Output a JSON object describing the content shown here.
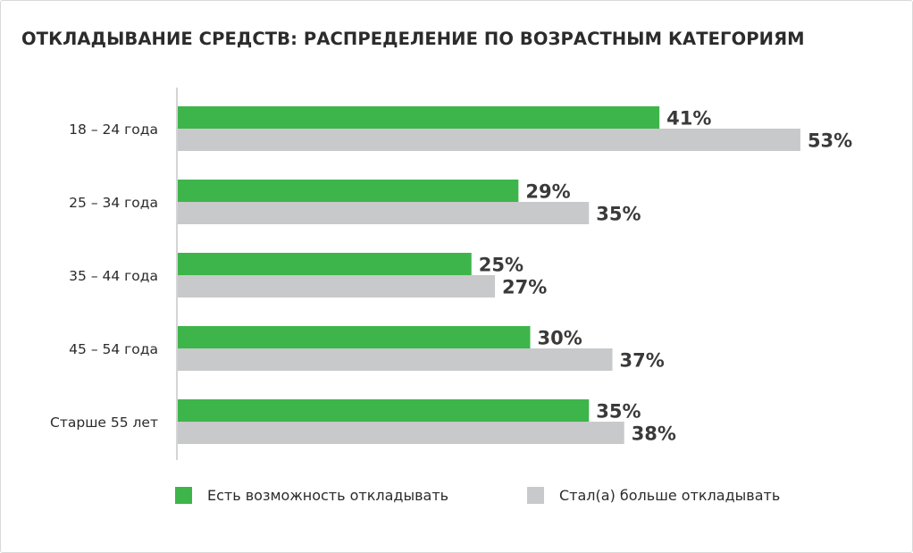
{
  "chart_data": {
    "type": "bar",
    "orientation": "horizontal",
    "title": "ОТКЛАДЫВАНИЕ СРЕДСТВ: РАСПРЕДЕЛЕНИЕ ПО ВОЗРАСТНЫМ КАТЕГОРИЯМ",
    "categories": [
      "18 – 24 года",
      "25 – 34 года",
      "35 – 44 года",
      "45 – 54 года",
      "Старше 55 лет"
    ],
    "series": [
      {
        "name": "Есть возможность откладывать",
        "color": "#3db54a",
        "values": [
          41,
          29,
          25,
          30,
          35
        ],
        "labels": [
          "41%",
          "29%",
          "25%",
          "30%",
          "35%"
        ]
      },
      {
        "name": "Стал(а) больше откладывать",
        "color": "#c8c9cb",
        "values": [
          53,
          35,
          27,
          37,
          38
        ],
        "labels": [
          "53%",
          "35%",
          "27%",
          "37%",
          "38%"
        ]
      }
    ],
    "value_unit": "%",
    "xlim": [
      0,
      55
    ],
    "grid": false,
    "legend_position": "bottom"
  },
  "legend": {
    "items": [
      {
        "label": "Есть возможность откладывать",
        "color": "#3db54a"
      },
      {
        "label": "Стал(а) больше откладывать",
        "color": "#c8c9cb"
      }
    ]
  }
}
